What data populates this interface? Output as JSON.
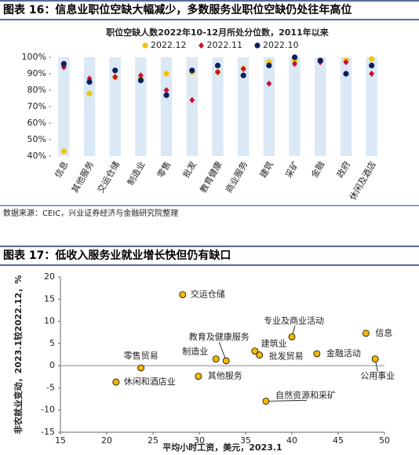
{
  "figure1_title": "图表 16：信息业职位空缺大幅减少，多数服务业职位空缺仍处往年高位",
  "source": "数据来源：CEIC，兴业证券经济与金融研究院整理",
  "figure2_title": "图表 17：低收入服务业就业增长快但仍有缺口",
  "chart_data": [
    {
      "type": "dot",
      "title": "职位空缺人数2022年10-12月所处分位数，2011年以来",
      "categories": [
        "信息",
        "其他服务",
        "交运仓储",
        "制造业",
        "零售",
        "批发",
        "教育健康",
        "商业服务",
        "建筑",
        "采矿",
        "金融",
        "政府",
        "休闲及酒店"
      ],
      "series": [
        {
          "name": "2022.12",
          "color": "#f5c400",
          "marker": "circle",
          "values": [
            43,
            78,
            88,
            87,
            90,
            91,
            91,
            93,
            97,
            98,
            98,
            98,
            99
          ]
        },
        {
          "name": "2022.11",
          "color": "#c8102e",
          "marker": "diamond",
          "values": [
            94,
            87,
            88,
            89,
            80,
            74,
            91,
            93,
            84,
            96,
            97,
            97,
            90
          ]
        },
        {
          "name": "2022.10",
          "color": "#0b1f5c",
          "marker": "circle",
          "values": [
            96,
            85,
            92,
            86,
            77,
            92,
            95,
            89,
            95,
            100,
            98,
            90,
            95
          ]
        }
      ],
      "ylim": [
        40,
        100
      ],
      "yticks": [
        {
          "value": 40,
          "label": "40%"
        },
        {
          "value": 50,
          "label": "50%"
        },
        {
          "value": 60,
          "label": "60%"
        },
        {
          "value": 70,
          "label": "70%"
        },
        {
          "value": 80,
          "label": "80%"
        },
        {
          "value": 90,
          "label": "90%"
        },
        {
          "value": 100,
          "label": "100%"
        }
      ]
    },
    {
      "type": "scatter",
      "xlabel": "平均小时工资，美元，2023.1",
      "ylabel": "非农就业变动，2023.1较2022.12，%",
      "color": "#f5b800",
      "labels": [
        "交运仓储",
        "信息",
        "专业及商业活动",
        "教育及健康服务",
        "建筑业",
        "制造业",
        "批发贸易",
        "金融活动",
        "零售贸易",
        "公用事业",
        "休闲和酒店业",
        "其他服务",
        "自然资源和采矿"
      ],
      "x": [
        28.2,
        48.0,
        40.0,
        32.9,
        36.0,
        31.8,
        36.5,
        42.7,
        23.7,
        49.0,
        21.0,
        29.9,
        37.2
      ],
      "y": [
        16,
        7.3,
        6.5,
        1.1,
        3.3,
        1.5,
        2.4,
        2.7,
        -0.5,
        1.5,
        -3.7,
        -2.4,
        -8
      ],
      "xlim": [
        15,
        50
      ],
      "xticks": [
        15,
        20,
        25,
        30,
        35,
        40,
        45,
        50
      ],
      "ylim": [
        -15,
        20
      ],
      "yticks": [
        -15,
        -10,
        -5,
        0,
        5,
        10,
        15,
        20
      ]
    }
  ]
}
